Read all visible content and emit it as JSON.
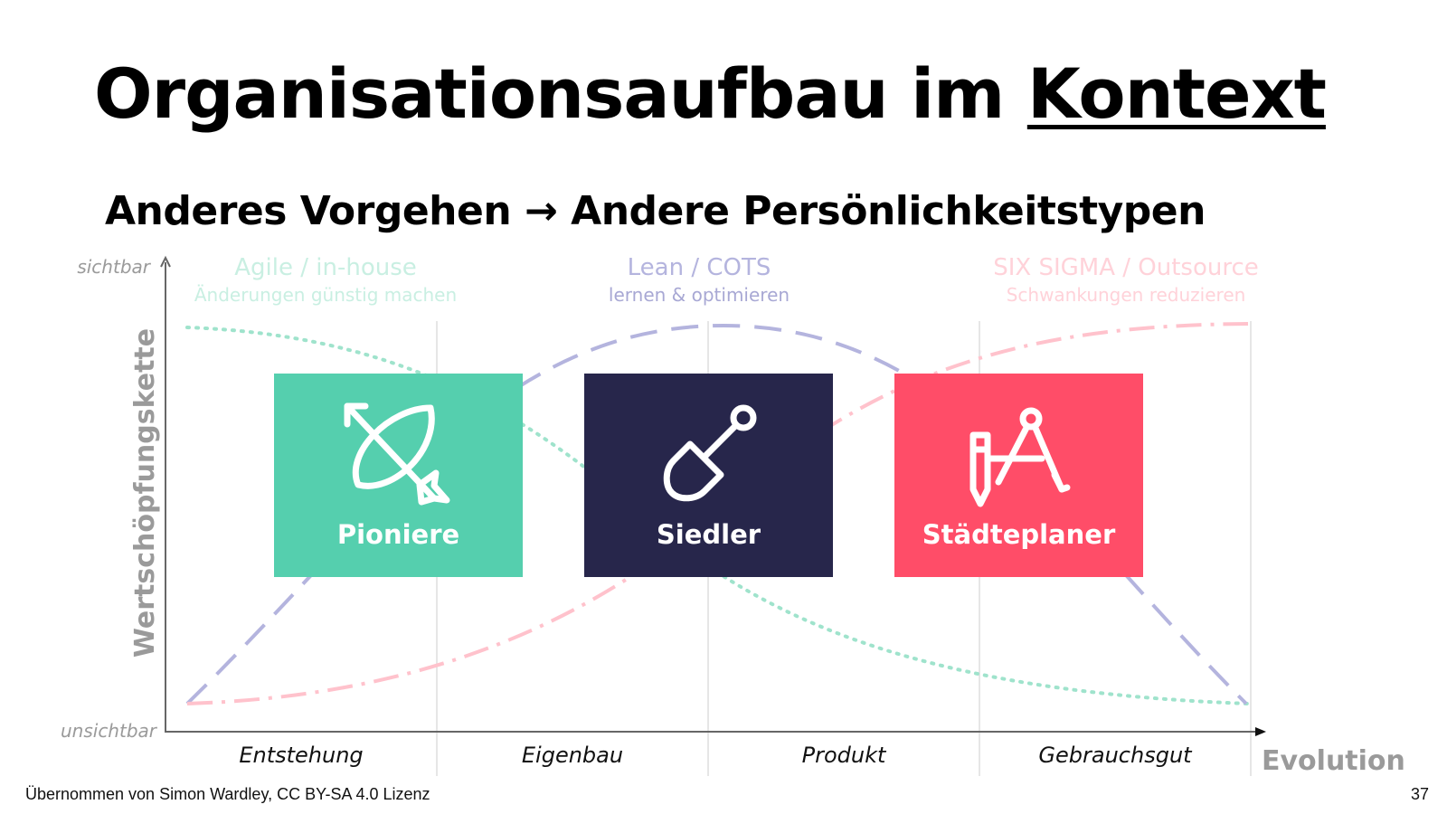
{
  "slide": {
    "title_main": "Organisationsaufbau im",
    "title_emphasis": "Kontext",
    "subtitle": "Anderes Vorgehen → Andere Persönlichkeitstypen",
    "footer_credit": "Übernommen von Simon Wardley, CC BY-SA 4.0 Lizenz",
    "page_number": "37"
  },
  "diagram": {
    "y_axis": {
      "label": "Wertschöpfungskette",
      "top_label": "sichtbar",
      "bottom_label": "unsichtbar"
    },
    "x_axis": {
      "label": "Evolution",
      "stages": [
        "Entstehung",
        "Eigenbau",
        "Produkt",
        "Gebrauchsgut"
      ]
    },
    "approaches": [
      {
        "title": "Agile / in-house",
        "subtitle": "Änderungen günstig machen",
        "color": "#9fe3cc"
      },
      {
        "title": "Lean / COTS",
        "subtitle": "lernen & optimieren",
        "color": "#b4b4de"
      },
      {
        "title": "SIX SIGMA / Outsource",
        "subtitle": "Schwankungen reduzieren",
        "color": "#ffc2cc"
      }
    ],
    "colors": {
      "axis": "#666666",
      "grid": "#dddddd",
      "muted_text": "#9a9a9a"
    }
  },
  "cards": [
    {
      "label": "Pioniere",
      "icon": "bow-arrow-icon",
      "color": "#55cfae"
    },
    {
      "label": "Siedler",
      "icon": "shovel-icon",
      "color": "#27264b"
    },
    {
      "label": "Städteplaner",
      "icon": "compass-pencil-icon",
      "color": "#ff4d68"
    }
  ]
}
